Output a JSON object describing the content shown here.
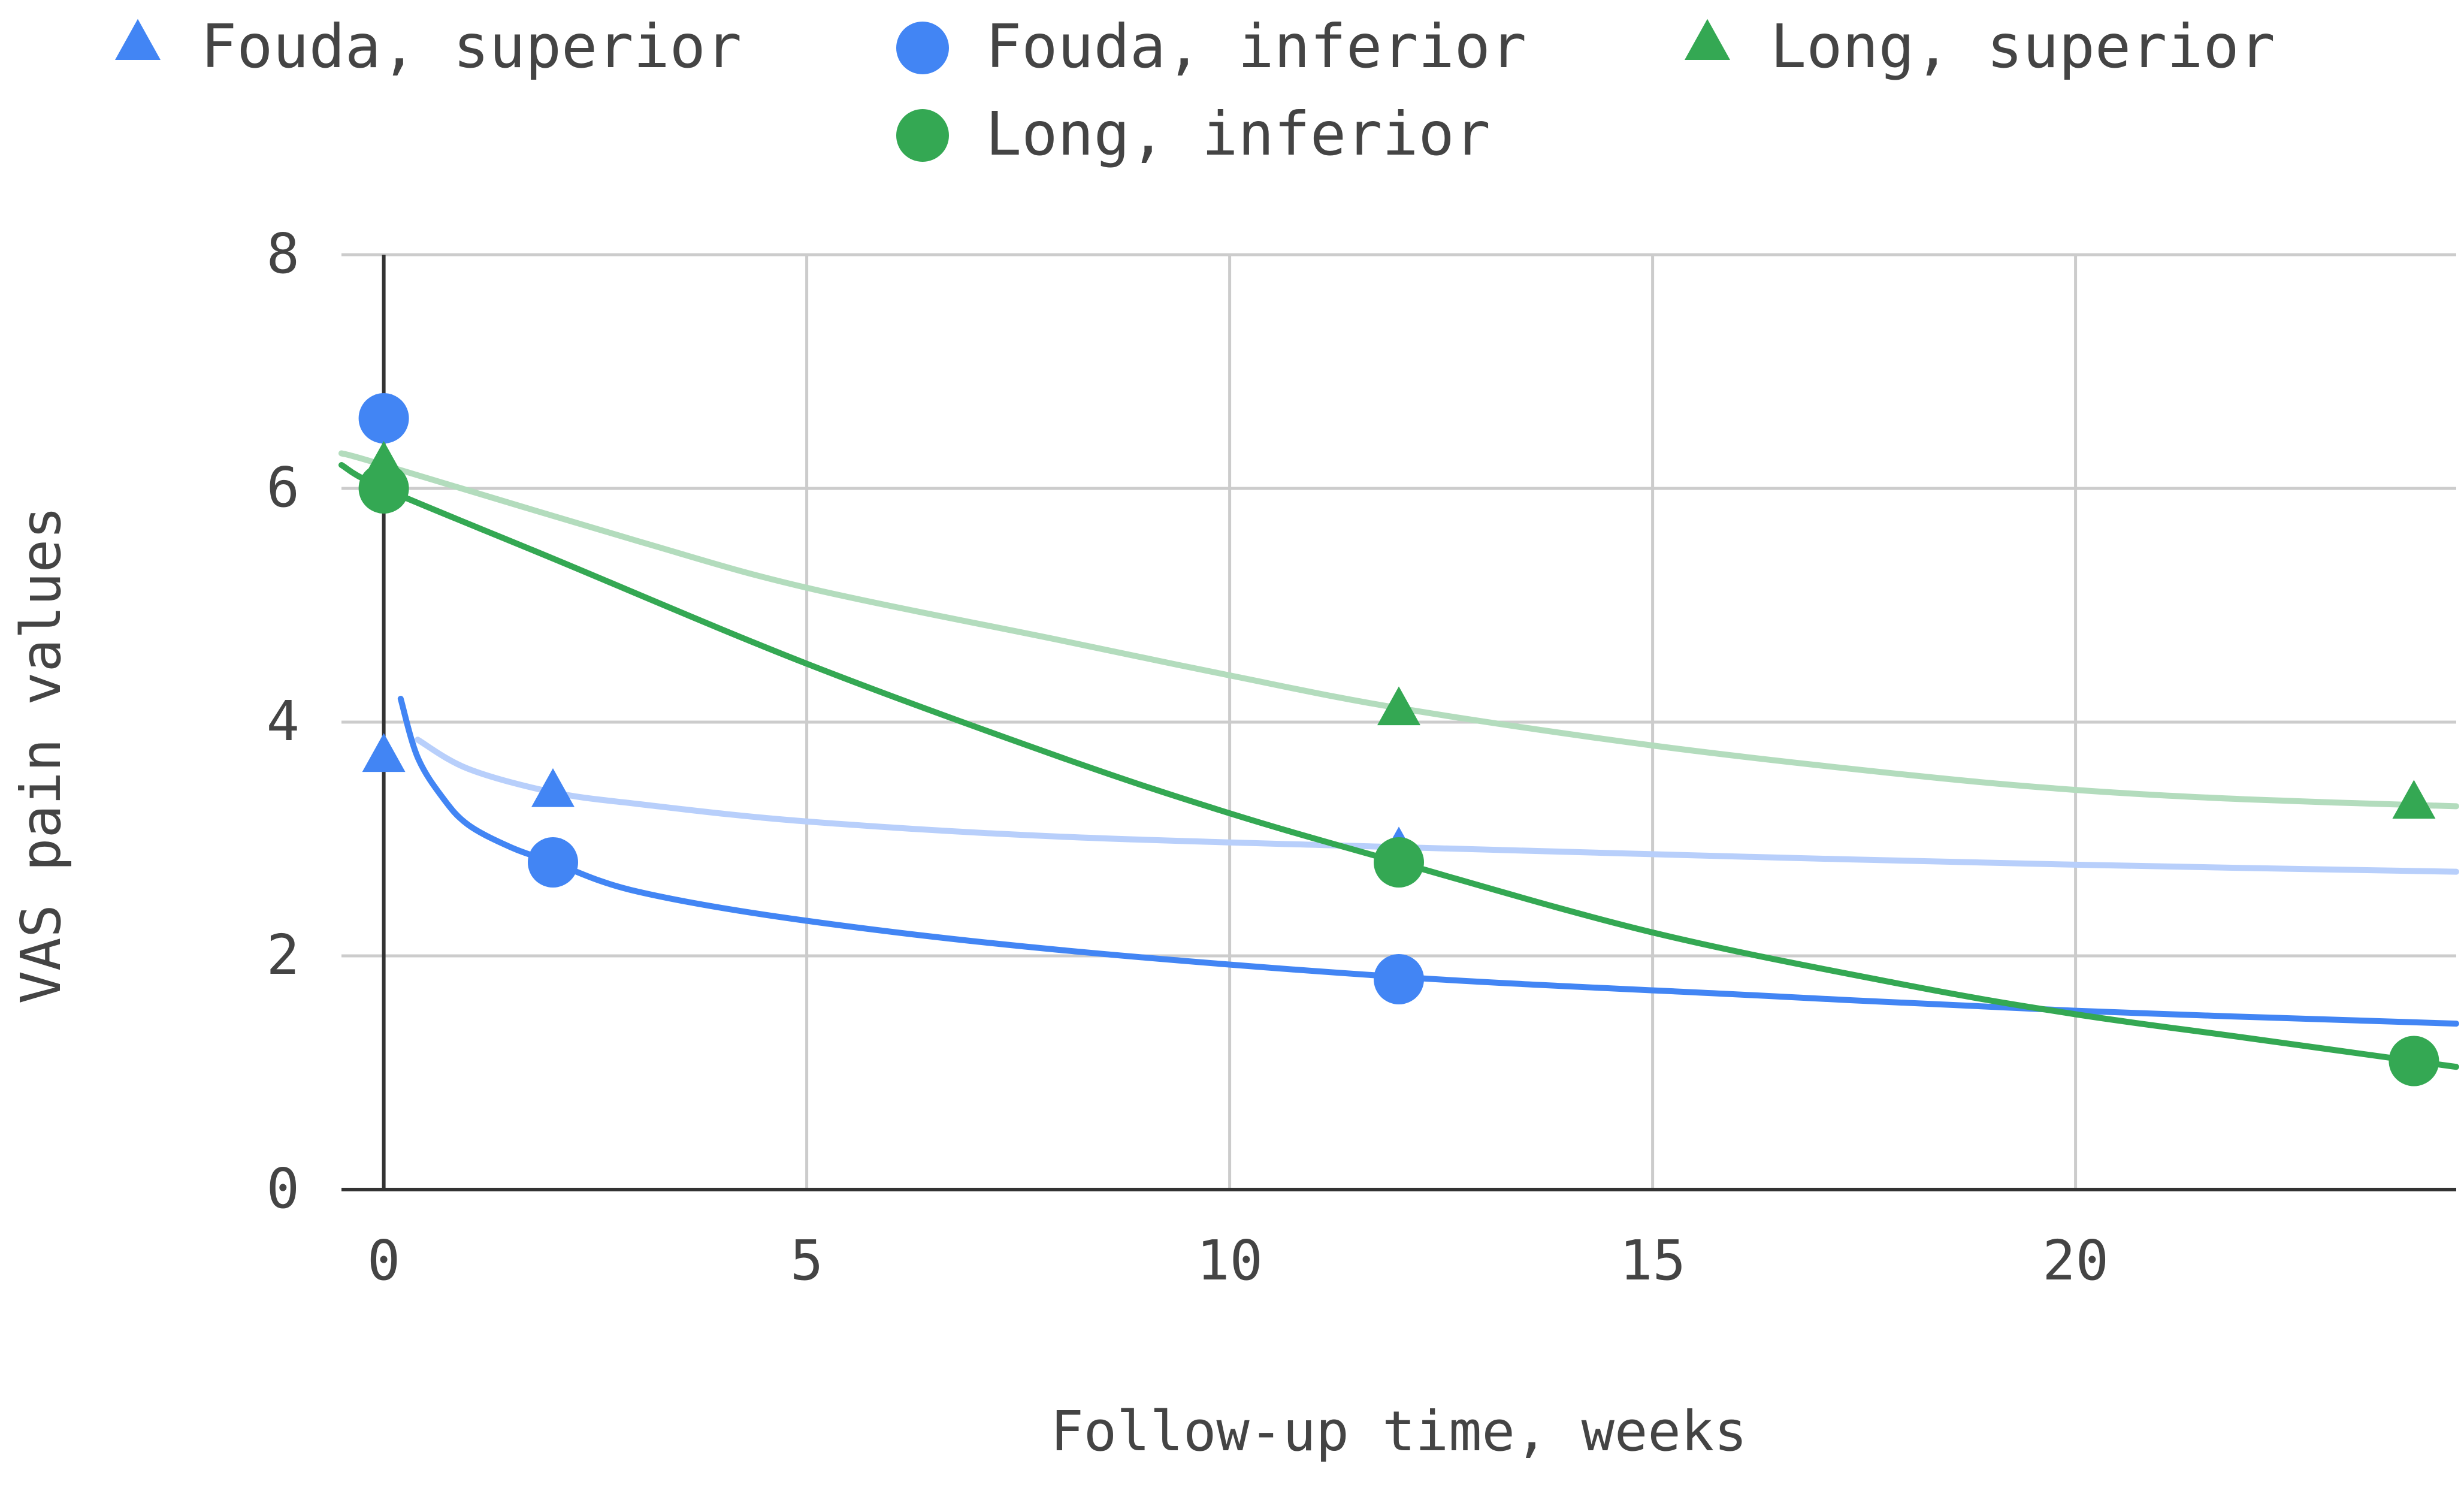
{
  "chart_data": {
    "type": "scatter",
    "title": "",
    "xlabel": "Follow-up time, weeks",
    "ylabel": "VAS pain values",
    "xlim": [
      -0.5,
      24.5
    ],
    "ylim": [
      0,
      8
    ],
    "x_ticks": [
      0,
      5,
      10,
      15,
      20
    ],
    "y_ticks": [
      0,
      2,
      4,
      6,
      8
    ],
    "grid": true,
    "legend_position": "top",
    "series": [
      {
        "name": "Fouda, superior",
        "marker": "triangle",
        "color": "#4285f4",
        "trendline_color": "#b8cffb",
        "points": [
          {
            "x": 0,
            "y": 3.7
          },
          {
            "x": 2,
            "y": 3.4
          },
          {
            "x": 12,
            "y": 2.9
          }
        ],
        "trendline": [
          {
            "x": 0.4,
            "y": 3.85
          },
          {
            "x": 1,
            "y": 3.6
          },
          {
            "x": 2,
            "y": 3.4
          },
          {
            "x": 3,
            "y": 3.3
          },
          {
            "x": 5,
            "y": 3.15
          },
          {
            "x": 8,
            "y": 3.02
          },
          {
            "x": 12,
            "y": 2.93
          },
          {
            "x": 16,
            "y": 2.85
          },
          {
            "x": 20,
            "y": 2.78
          },
          {
            "x": 24.5,
            "y": 2.72
          }
        ]
      },
      {
        "name": "Fouda, inferior",
        "marker": "circle",
        "color": "#4285f4",
        "trendline_color": "#4285f4",
        "points": [
          {
            "x": 0,
            "y": 6.6
          },
          {
            "x": 2,
            "y": 2.8
          },
          {
            "x": 12,
            "y": 1.8
          }
        ],
        "trendline": [
          {
            "x": 0.2,
            "y": 4.2
          },
          {
            "x": 0.4,
            "y": 3.7
          },
          {
            "x": 0.7,
            "y": 3.35
          },
          {
            "x": 1,
            "y": 3.12
          },
          {
            "x": 1.5,
            "y": 2.93
          },
          {
            "x": 2,
            "y": 2.8
          },
          {
            "x": 3,
            "y": 2.55
          },
          {
            "x": 5,
            "y": 2.3
          },
          {
            "x": 8,
            "y": 2.05
          },
          {
            "x": 12,
            "y": 1.82
          },
          {
            "x": 16,
            "y": 1.67
          },
          {
            "x": 20,
            "y": 1.53
          },
          {
            "x": 24.5,
            "y": 1.42
          }
        ]
      },
      {
        "name": "Long, superior",
        "marker": "triangle",
        "color": "#34a853",
        "trendline_color": "#b3dcbd",
        "points": [
          {
            "x": 0,
            "y": 6.2
          },
          {
            "x": 12,
            "y": 4.1
          },
          {
            "x": 24,
            "y": 3.3
          }
        ],
        "trendline": [
          {
            "x": -0.5,
            "y": 6.3
          },
          {
            "x": 0,
            "y": 6.2
          },
          {
            "x": 3,
            "y": 5.55
          },
          {
            "x": 5,
            "y": 5.15
          },
          {
            "x": 8,
            "y": 4.7
          },
          {
            "x": 10,
            "y": 4.4
          },
          {
            "x": 12,
            "y": 4.12
          },
          {
            "x": 15,
            "y": 3.8
          },
          {
            "x": 18,
            "y": 3.55
          },
          {
            "x": 20,
            "y": 3.42
          },
          {
            "x": 22,
            "y": 3.34
          },
          {
            "x": 24.5,
            "y": 3.28
          }
        ]
      },
      {
        "name": "Long, inferior",
        "marker": "circle",
        "color": "#34a853",
        "trendline_color": "#34a853",
        "points": [
          {
            "x": 0,
            "y": 6.0
          },
          {
            "x": 12,
            "y": 2.8
          },
          {
            "x": 24,
            "y": 1.1
          }
        ],
        "trendline": [
          {
            "x": -0.5,
            "y": 6.2
          },
          {
            "x": 0,
            "y": 6.0
          },
          {
            "x": 2,
            "y": 5.4
          },
          {
            "x": 5,
            "y": 4.5
          },
          {
            "x": 8,
            "y": 3.7
          },
          {
            "x": 10,
            "y": 3.22
          },
          {
            "x": 12,
            "y": 2.8
          },
          {
            "x": 15,
            "y": 2.2
          },
          {
            "x": 18,
            "y": 1.75
          },
          {
            "x": 20,
            "y": 1.5
          },
          {
            "x": 22,
            "y": 1.3
          },
          {
            "x": 24.5,
            "y": 1.05
          }
        ]
      }
    ]
  }
}
